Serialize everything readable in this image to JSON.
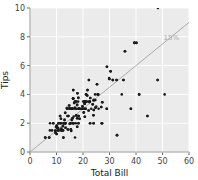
{
  "chart_data": {
    "type": "scatter",
    "x_label": "Total Bill",
    "y_label": "Tips",
    "x": [
      16.99,
      10.34,
      21.01,
      23.68,
      24.59,
      25.29,
      8.77,
      26.88,
      15.04,
      14.78,
      10.27,
      35.26,
      15.42,
      18.43,
      14.83,
      21.58,
      10.33,
      16.29,
      16.97,
      20.65,
      17.92,
      20.29,
      15.77,
      39.42,
      19.82,
      17.81,
      13.37,
      12.69,
      21.7,
      19.65,
      9.55,
      18.35,
      15.06,
      20.69,
      17.78,
      24.06,
      16.31,
      16.93,
      18.69,
      31.27,
      16.04,
      17.46,
      13.94,
      9.68,
      30.4,
      18.29,
      22.23,
      16.66,
      32.68,
      15.98,
      13.03,
      18.28,
      24.71,
      21.16,
      28.97,
      22.49,
      5.75,
      16.32,
      22.75,
      40.17,
      27.28,
      12.03,
      21.01,
      12.46,
      11.35,
      15.38,
      44.3,
      22.42,
      20.92,
      15.36,
      20.49,
      25.56,
      18.24,
      14.31,
      14.0,
      7.25,
      38.07,
      23.95,
      25.71,
      17.31,
      29.93,
      10.65,
      12.43,
      24.08,
      11.69,
      13.42,
      14.48,
      15.98,
      16.27,
      10.09,
      20.45,
      13.28,
      22.12,
      24.01,
      15.69,
      11.61,
      10.77,
      15.53,
      10.07,
      12.6,
      32.83,
      35.83,
      29.03,
      27.18,
      22.67,
      17.82,
      18.78,
      9.6,
      20.08,
      16.97,
      10.34,
      21.01,
      23.68,
      24.59,
      25.29,
      8.77,
      26.88,
      15.04,
      14.78,
      10.27,
      35.26,
      15.42,
      18.43,
      14.83,
      21.58,
      10.33,
      16.29,
      16.97,
      20.65,
      17.92,
      20.29,
      15.77,
      39.42,
      19.82,
      17.81,
      13.37,
      12.69,
      21.7,
      19.65,
      9.55,
      18.35,
      15.06,
      20.69,
      17.78,
      24.06,
      16.31,
      16.93,
      18.69,
      31.27,
      16.04,
      17.46,
      13.94,
      9.68,
      30.4,
      18.29,
      22.23,
      16.66,
      32.68,
      15.98,
      13.03,
      18.28,
      24.71,
      21.16,
      28.97,
      22.49,
      5.75,
      16.32,
      22.75,
      40.17,
      27.28,
      12.03,
      21.01,
      12.46,
      11.35,
      15.38,
      44.3,
      22.42,
      20.92,
      15.36,
      20.49,
      25.56,
      18.24,
      14.31,
      14.0,
      7.25,
      38.07,
      23.95,
      25.71,
      17.31,
      29.93,
      10.65,
      12.43,
      24.08,
      11.69,
      13.42,
      14.48,
      15.98,
      16.27,
      10.09,
      20.45,
      13.28,
      22.12,
      24.01,
      15.69,
      11.61,
      10.77,
      15.53,
      10.07,
      12.6,
      32.83,
      35.83,
      29.03,
      27.18,
      22.67,
      17.82,
      18.78,
      48.27,
      11.38,
      48.17,
      50.81,
      25.89,
      34.63,
      41.19,
      27.05,
      16.43,
      8.35,
      18.64,
      11.87,
      9.78,
      7.51,
      14.07,
      13.13,
      17.26,
      24.55,
      19.77,
      29.85,
      48.17,
      25.0,
      13.39,
      16.49,
      21.5,
      12.66,
      39.42,
      18.15,
      23.1,
      11.59,
      7.56,
      11.42,
      41.19,
      20.65,
      17.51,
      24.06,
      16.31,
      31.27,
      15.04,
      22.49
    ],
    "values": [
      1.01,
      1.66,
      3.5,
      3.31,
      3.61,
      4.71,
      2.0,
      3.12,
      1.96,
      3.23,
      1.71,
      5.0,
      1.57,
      3.0,
      3.02,
      3.92,
      1.67,
      3.71,
      3.5,
      3.35,
      4.08,
      2.75,
      2.23,
      7.58,
      3.18,
      2.34,
      2.0,
      2.0,
      4.3,
      3.0,
      1.45,
      2.5,
      3.0,
      2.45,
      3.27,
      3.6,
      2.0,
      3.07,
      2.31,
      5.0,
      2.34,
      2.54,
      3.06,
      1.32,
      5.6,
      3.0,
      5.0,
      3.4,
      5.0,
      3.0,
      2.23,
      2.0,
      3.08,
      4.0,
      3.0,
      3.5,
      1.0,
      4.3,
      3.75,
      7.58,
      3.45,
      1.5,
      3.0,
      1.5,
      2.5,
      3.0,
      2.5,
      3.48,
      3.48,
      2.0,
      3.5,
      4.0,
      3.76,
      1.56,
      3.0,
      1.0,
      3.0,
      2.55,
      4.0,
      3.5,
      5.07,
      1.5,
      1.8,
      2.92,
      2.31,
      1.68,
      2.5,
      3.0,
      3.71,
      1.84,
      3.0,
      2.72,
      2.88,
      2.0,
      3.0,
      2.0,
      2.0,
      1.47,
      1.25,
      1.0,
      1.17,
      7.0,
      5.92,
      2.0,
      2.0,
      1.75,
      3.0,
      1.5,
      3.5,
      3.0,
      1.66,
      3.5,
      3.31,
      3.61,
      4.71,
      2.0,
      3.12,
      1.96,
      3.23,
      1.71,
      5.0,
      1.57,
      3.0,
      3.02,
      3.92,
      1.67,
      3.71,
      3.5,
      3.35,
      4.08,
      2.75,
      2.23,
      7.58,
      3.18,
      2.34,
      2.0,
      2.0,
      4.3,
      3.0,
      1.45,
      2.5,
      3.0,
      2.45,
      3.27,
      3.6,
      2.0,
      3.07,
      2.31,
      5.0,
      2.34,
      2.54,
      3.06,
      1.32,
      5.6,
      3.0,
      5.0,
      3.4,
      5.0,
      3.0,
      2.23,
      2.0,
      3.08,
      4.0,
      3.0,
      3.5,
      1.0,
      4.3,
      3.75,
      7.58,
      3.45,
      1.5,
      3.0,
      1.5,
      2.5,
      3.0,
      2.5,
      3.48,
      3.48,
      2.0,
      3.5,
      4.0,
      3.76,
      1.56,
      3.0,
      1.0,
      3.0,
      2.55,
      4.0,
      3.5,
      5.07,
      1.5,
      1.8,
      2.92,
      2.31,
      1.68,
      2.5,
      3.0,
      3.71,
      1.84,
      3.0,
      2.72,
      2.88,
      2.0,
      3.0,
      2.0,
      2.0,
      1.47,
      1.25,
      1.0,
      1.17,
      7.0,
      5.92,
      2.0,
      2.0,
      1.75,
      3.0,
      10.0,
      2.0,
      5.0,
      4.0,
      3.0,
      4.0,
      4.0,
      2.0,
      2.0,
      1.5,
      3.0,
      1.63,
      1.73,
      1.5,
      2.5,
      2.0,
      2.0,
      4.0,
      3.0,
      5.14,
      5.0,
      3.15,
      2.0,
      2.47,
      3.5,
      2.0,
      7.58,
      3.5,
      3.0,
      1.61,
      2.0,
      1.5,
      4.0,
      3.35,
      3.0,
      3.6,
      2.0,
      5.0,
      1.96,
      3.5
    ],
    "color": "#1a1a1a",
    "reference_line": {
      "label": "15%",
      "slope": 0.15,
      "color": "#aaaaaa"
    },
    "xlim": [
      0,
      60
    ],
    "ylim": [
      0,
      10
    ],
    "xticks": [
      0,
      10,
      20,
      30,
      40,
      50,
      60
    ],
    "yticks": [
      0,
      2,
      4,
      6,
      8,
      10
    ],
    "grid": true
  }
}
